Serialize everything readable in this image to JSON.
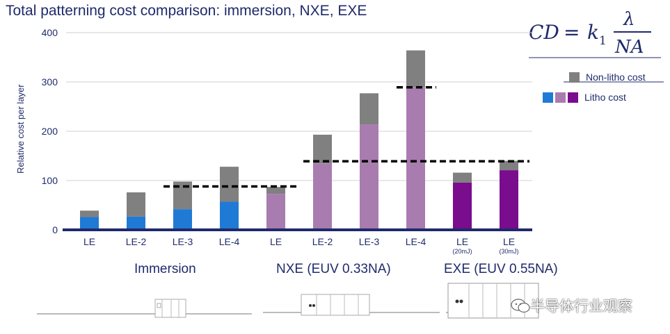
{
  "title": "Total patterning cost comparison: immersion, NXE, EXE",
  "formula": {
    "cd": "CD",
    "eq": "=",
    "k": "k",
    "sub": "1",
    "num": "λ",
    "den": "NA"
  },
  "colors": {
    "non_litho": "#808080",
    "immersion": "#1f7ad6",
    "nxe": "#a97cb0",
    "exe": "#7a0c8e",
    "axis": "#1f2a6b",
    "grid": "#d0d0d0",
    "text": "#1f2a6b"
  },
  "legend": {
    "non_litho_label": "Non-litho cost",
    "litho_label": "Litho cost"
  },
  "groups": {
    "immersion": "Immersion",
    "nxe": "NXE (EUV 0.33NA)",
    "exe": "EXE (EUV 0.55NA)"
  },
  "watermark": "半导体行业观察",
  "chart_data": {
    "type": "bar",
    "stacked": true,
    "title": "Total patterning cost comparison: immersion, NXE, EXE",
    "ylabel": "Relative cost per layer",
    "xlabel": "",
    "ylim": [
      0,
      400
    ],
    "yticks": [
      0,
      100,
      200,
      300,
      400
    ],
    "grid": true,
    "legend_position": "top-right",
    "categories": [
      {
        "label": "LE",
        "sub": "",
        "group": "immersion"
      },
      {
        "label": "LE-2",
        "sub": "",
        "group": "immersion"
      },
      {
        "label": "LE-3",
        "sub": "",
        "group": "immersion"
      },
      {
        "label": "LE-4",
        "sub": "",
        "group": "immersion"
      },
      {
        "label": "LE",
        "sub": "",
        "group": "nxe"
      },
      {
        "label": "LE-2",
        "sub": "",
        "group": "nxe"
      },
      {
        "label": "LE-3",
        "sub": "",
        "group": "nxe"
      },
      {
        "label": "LE-4",
        "sub": "",
        "group": "nxe"
      },
      {
        "label": "LE",
        "sub": "(20mJ)",
        "group": "exe"
      },
      {
        "label": "LE",
        "sub": "(30mJ)",
        "group": "exe"
      }
    ],
    "series": [
      {
        "name": "Litho cost",
        "values": [
          26,
          27,
          42,
          57,
          73,
          135,
          214,
          290,
          96,
          121
        ]
      },
      {
        "name": "Non-litho cost",
        "values": [
          13,
          49,
          56,
          71,
          14,
          58,
          63,
          74,
          20,
          19
        ]
      }
    ],
    "reference_lines": [
      {
        "y": 88,
        "from": 2,
        "to": 4
      },
      {
        "y": 139,
        "from": 5,
        "to": 9
      },
      {
        "y": 289,
        "from": 7,
        "to": 7
      }
    ]
  }
}
